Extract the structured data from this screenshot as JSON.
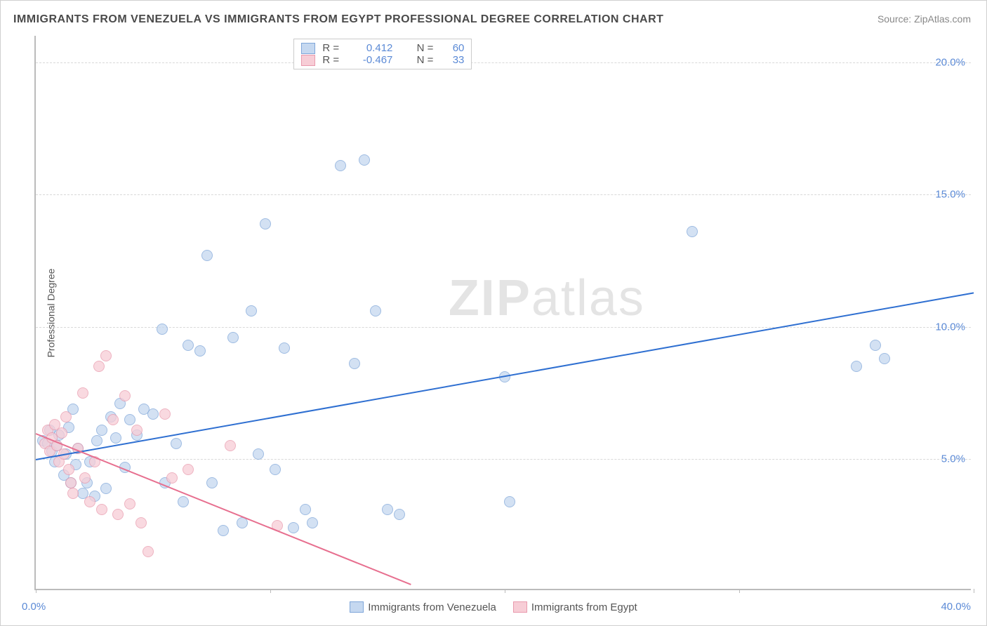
{
  "title": "IMMIGRANTS FROM VENEZUELA VS IMMIGRANTS FROM EGYPT PROFESSIONAL DEGREE CORRELATION CHART",
  "source": "Source: ZipAtlas.com",
  "watermark": "ZIPatlas",
  "ylabel": "Professional Degree",
  "chart": {
    "type": "scatter",
    "background_color": "#ffffff",
    "grid_color": "#d8d8d8",
    "axis_color": "#bbbbbb",
    "tick_label_color": "#5b8ad6",
    "xlim": [
      0,
      40
    ],
    "ylim": [
      0,
      21
    ],
    "xticks": [
      0,
      10,
      20,
      30,
      40
    ],
    "xticklabels": [
      "0.0%",
      "",
      "",
      "",
      "40.0%"
    ],
    "yticks": [
      5,
      10,
      15,
      20
    ],
    "yticklabels": [
      "5.0%",
      "10.0%",
      "15.0%",
      "20.0%"
    ],
    "marker_radius": 8,
    "marker_stroke_width": 1.5,
    "series": [
      {
        "name": "Immigrants from Venezuela",
        "fill": "#c5d8f0",
        "stroke": "#7fa6d9",
        "opacity": 0.75,
        "R": "0.412",
        "N": "60",
        "regression": {
          "x0": 0,
          "y0": 5.0,
          "x1": 40,
          "y1": 11.3,
          "color": "#2e6fd1",
          "width": 2
        },
        "points": [
          [
            0.3,
            5.6
          ],
          [
            0.5,
            5.5
          ],
          [
            0.6,
            6.0
          ],
          [
            0.7,
            5.2
          ],
          [
            0.8,
            4.8
          ],
          [
            0.9,
            5.4
          ],
          [
            1.0,
            5.8
          ],
          [
            1.2,
            4.3
          ],
          [
            1.3,
            5.1
          ],
          [
            1.4,
            6.1
          ],
          [
            1.5,
            4.0
          ],
          [
            1.6,
            6.8
          ],
          [
            1.7,
            4.7
          ],
          [
            1.8,
            5.3
          ],
          [
            2.0,
            3.6
          ],
          [
            2.2,
            4.0
          ],
          [
            2.3,
            4.8
          ],
          [
            2.5,
            3.5
          ],
          [
            2.6,
            5.6
          ],
          [
            2.8,
            6.0
          ],
          [
            3.0,
            3.8
          ],
          [
            3.2,
            6.5
          ],
          [
            3.4,
            5.7
          ],
          [
            3.6,
            7.0
          ],
          [
            3.8,
            4.6
          ],
          [
            4.0,
            6.4
          ],
          [
            4.3,
            5.8
          ],
          [
            4.6,
            6.8
          ],
          [
            5.0,
            6.6
          ],
          [
            5.4,
            9.8
          ],
          [
            5.5,
            4.0
          ],
          [
            6.0,
            5.5
          ],
          [
            6.3,
            3.3
          ],
          [
            6.5,
            9.2
          ],
          [
            7.0,
            9.0
          ],
          [
            7.3,
            12.6
          ],
          [
            7.5,
            4.0
          ],
          [
            8.0,
            2.2
          ],
          [
            8.4,
            9.5
          ],
          [
            8.8,
            2.5
          ],
          [
            9.2,
            10.5
          ],
          [
            9.5,
            5.1
          ],
          [
            9.8,
            13.8
          ],
          [
            10.2,
            4.5
          ],
          [
            10.6,
            9.1
          ],
          [
            11.0,
            2.3
          ],
          [
            11.5,
            3.0
          ],
          [
            11.8,
            2.5
          ],
          [
            13.0,
            16.0
          ],
          [
            13.6,
            8.5
          ],
          [
            14.0,
            16.2
          ],
          [
            14.5,
            10.5
          ],
          [
            15.0,
            3.0
          ],
          [
            15.5,
            2.8
          ],
          [
            20.0,
            8.0
          ],
          [
            20.2,
            3.3
          ],
          [
            28.0,
            13.5
          ],
          [
            35.0,
            8.4
          ],
          [
            35.8,
            9.2
          ],
          [
            36.2,
            8.7
          ]
        ]
      },
      {
        "name": "Immigrants from Egypt",
        "fill": "#f7cdd6",
        "stroke": "#e99aad",
        "opacity": 0.75,
        "R": "-0.467",
        "N": "33",
        "regression": {
          "x0": 0,
          "y0": 6.0,
          "x1": 16,
          "y1": 0.3,
          "color": "#e76f8f",
          "width": 2
        },
        "points": [
          [
            0.4,
            5.5
          ],
          [
            0.5,
            6.0
          ],
          [
            0.6,
            5.2
          ],
          [
            0.7,
            5.7
          ],
          [
            0.8,
            6.2
          ],
          [
            0.9,
            5.4
          ],
          [
            1.0,
            4.8
          ],
          [
            1.1,
            5.9
          ],
          [
            1.2,
            5.1
          ],
          [
            1.3,
            6.5
          ],
          [
            1.4,
            4.5
          ],
          [
            1.5,
            4.0
          ],
          [
            1.6,
            3.6
          ],
          [
            1.8,
            5.3
          ],
          [
            2.0,
            7.4
          ],
          [
            2.1,
            4.2
          ],
          [
            2.3,
            3.3
          ],
          [
            2.5,
            4.8
          ],
          [
            2.7,
            8.4
          ],
          [
            2.8,
            3.0
          ],
          [
            3.0,
            8.8
          ],
          [
            3.3,
            6.4
          ],
          [
            3.5,
            2.8
          ],
          [
            3.8,
            7.3
          ],
          [
            4.0,
            3.2
          ],
          [
            4.3,
            6.0
          ],
          [
            4.5,
            2.5
          ],
          [
            4.8,
            1.4
          ],
          [
            5.5,
            6.6
          ],
          [
            5.8,
            4.2
          ],
          [
            6.5,
            4.5
          ],
          [
            8.3,
            5.4
          ],
          [
            10.3,
            2.4
          ]
        ]
      }
    ],
    "legend_top": {
      "rows": [
        {
          "swatch_fill": "#c5d8f0",
          "swatch_stroke": "#7fa6d9",
          "R": "0.412",
          "N": "60"
        },
        {
          "swatch_fill": "#f7cdd6",
          "swatch_stroke": "#e99aad",
          "R": "-0.467",
          "N": "33"
        }
      ]
    },
    "legend_bottom": [
      {
        "swatch_fill": "#c5d8f0",
        "swatch_stroke": "#7fa6d9",
        "label": "Immigrants from Venezuela"
      },
      {
        "swatch_fill": "#f7cdd6",
        "swatch_stroke": "#e99aad",
        "label": "Immigrants from Egypt"
      }
    ]
  }
}
